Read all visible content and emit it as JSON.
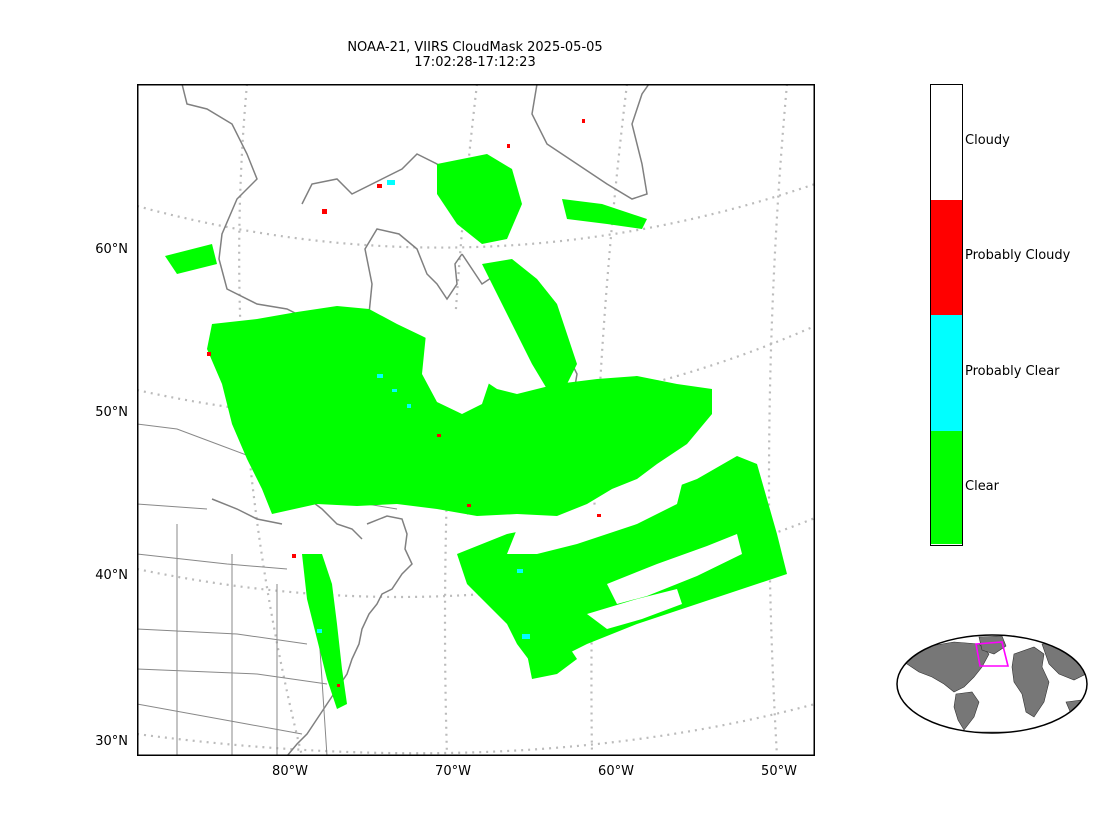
{
  "title_line1": "NOAA-21, VIIRS CloudMask 2025-05-05",
  "title_line2": "17:02:28-17:12:23",
  "lat_labels": [
    "60°N",
    "50°N",
    "40°N",
    "30°N"
  ],
  "lon_labels": [
    "80°W",
    "70°W",
    "60°W",
    "50°W"
  ],
  "legend": {
    "classes": [
      {
        "label": "Cloudy",
        "color": "#ffffff"
      },
      {
        "label": "Probably Cloudy",
        "color": "#ff0000"
      },
      {
        "label": "Probably Clear",
        "color": "#00ffff"
      },
      {
        "label": "Clear",
        "color": "#00ff00"
      }
    ]
  },
  "colors": {
    "clear": "#00ff00",
    "probably_clear": "#00ffff",
    "probably_cloudy": "#ff0000",
    "coastline": "#808080",
    "graticule": "#bbbbbb",
    "locator_box": "#ff00ff"
  }
}
